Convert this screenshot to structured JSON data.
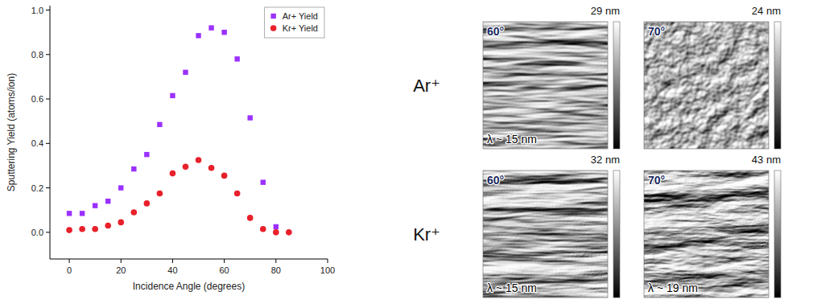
{
  "chart_data": {
    "type": "scatter",
    "x_label": "Incidence Angle (degrees)",
    "y_label": "Sputtering Yield (atoms/ion)",
    "x": [
      0,
      5,
      10,
      15,
      20,
      25,
      30,
      35,
      40,
      45,
      50,
      55,
      60,
      65,
      70,
      75,
      80,
      85
    ],
    "series": [
      {
        "name": "Ar+ Yield",
        "color": "#9b30ff",
        "marker": "square",
        "values": [
          0.085,
          0.085,
          0.12,
          0.14,
          0.2,
          0.285,
          0.35,
          0.485,
          0.615,
          0.72,
          0.885,
          0.92,
          0.9,
          0.78,
          0.515,
          0.225,
          0.025,
          null
        ]
      },
      {
        "name": "Kr+ Yield",
        "color": "#e8202a",
        "marker": "circle",
        "values": [
          0.01,
          0.015,
          0.015,
          0.03,
          0.045,
          0.09,
          0.13,
          0.175,
          0.265,
          0.295,
          0.325,
          0.29,
          0.255,
          0.175,
          0.065,
          0.015,
          0.0,
          0.0
        ]
      }
    ],
    "xlim": [
      -7.5,
      100
    ],
    "xticks": [
      0,
      20,
      40,
      60,
      80,
      100
    ],
    "ylim": [
      -0.12,
      1.02
    ],
    "yticks": [
      {
        "value": 0,
        "label": "0.0"
      },
      {
        "value": 0.2,
        "label": "0.2"
      },
      {
        "value": 0.4,
        "label": "0.4"
      },
      {
        "value": 0.6,
        "label": "0.6"
      },
      {
        "value": 0.8,
        "label": "0.8"
      },
      {
        "value": 1.0,
        "label": "1.0"
      }
    ],
    "legend": "top-right",
    "grid": false
  },
  "images": {
    "rows": [
      "Ar⁺",
      "Kr⁺"
    ],
    "panels": [
      {
        "row": 0,
        "angle": "60°",
        "wavelength": "λ ~ 15 nm",
        "scale_max": "29 nm"
      },
      {
        "row": 0,
        "angle": "70°",
        "scale_max": "24 nm"
      },
      {
        "row": 1,
        "angle": "60°",
        "wavelength": "λ ~ 15 nm",
        "scale_max": "32 nm"
      },
      {
        "row": 1,
        "angle": "70°",
        "wavelength": "λ ~ 19 nm",
        "scale_max": "43 nm"
      }
    ]
  }
}
